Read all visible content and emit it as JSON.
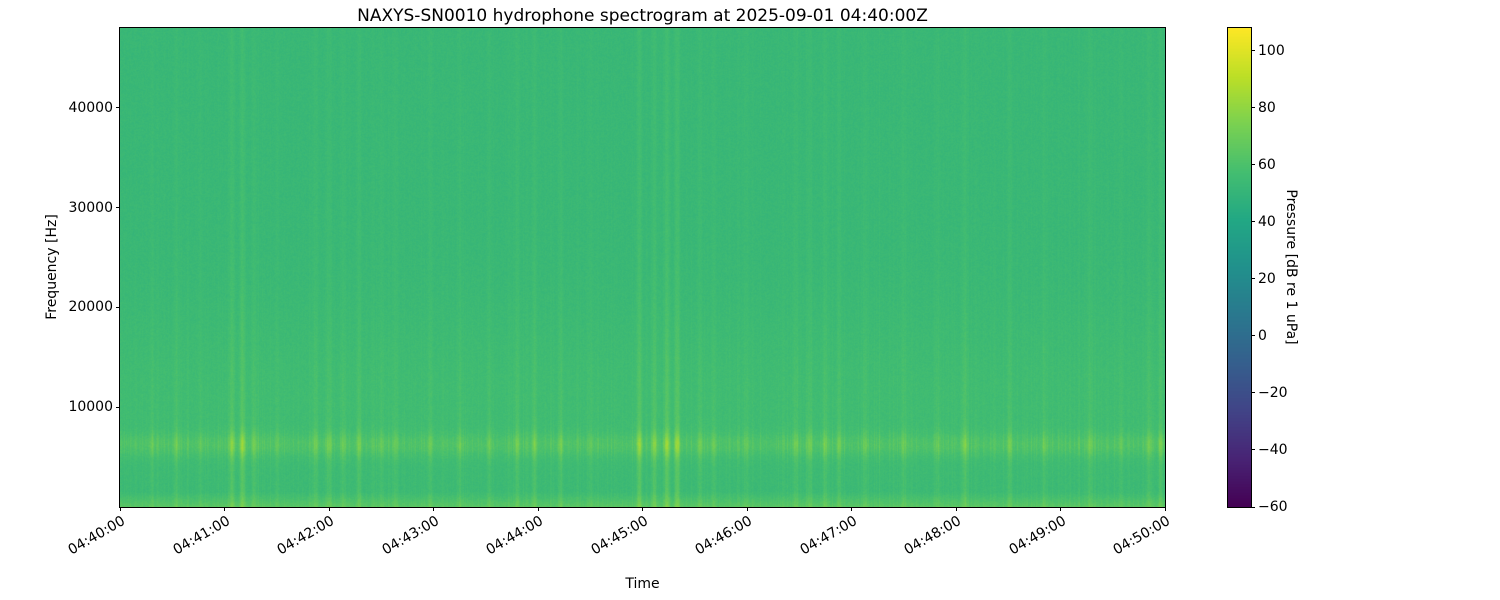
{
  "chart_data": {
    "type": "heatmap",
    "title": "NAXYS-SN0010 hydrophone spectrogram at 2025-09-01 04:40:00Z",
    "xlabel": "Time",
    "ylabel": "Frequency [Hz]",
    "x_tick_labels": [
      "04:40:00",
      "04:41:00",
      "04:42:00",
      "04:43:00",
      "04:44:00",
      "04:45:00",
      "04:46:00",
      "04:47:00",
      "04:48:00",
      "04:49:00",
      "04:50:00"
    ],
    "x_range_seconds": [
      0,
      600
    ],
    "y_tick_values": [
      10000,
      20000,
      30000,
      40000
    ],
    "y_range_hz": [
      0,
      48000
    ],
    "colormap": "viridis",
    "grid": false,
    "legend": "none",
    "colorbar": {
      "label": "Pressure [dB re 1 uPa]",
      "tick_values": [
        100,
        80,
        60,
        40,
        20,
        0,
        -20,
        -40,
        -60
      ],
      "range_db": [
        -60,
        108
      ],
      "position": "right"
    },
    "background": {
      "base_level_db": 52,
      "pixel_noise_db": 4.2,
      "low_band_hz": 1500,
      "low_band_boost_db": 10,
      "mid_hump_center_hz": 11000,
      "mid_hump_width_hz": 9000,
      "mid_hump_boost_db": 3,
      "tonal_band_hz": 6200,
      "tonal_band_width_hz": 1100,
      "tonal_band_boost_db": 4.5
    },
    "transients": [
      {
        "t": 18,
        "i": 0.3
      },
      {
        "t": 32,
        "i": 0.4
      },
      {
        "t": 46,
        "i": 0.3
      },
      {
        "t": 64,
        "i": 0.85
      },
      {
        "t": 70,
        "i": 0.95
      },
      {
        "t": 77,
        "i": 0.5
      },
      {
        "t": 90,
        "i": 0.3
      },
      {
        "t": 112,
        "i": 0.45
      },
      {
        "t": 120,
        "i": 0.5
      },
      {
        "t": 128,
        "i": 0.4
      },
      {
        "t": 137,
        "i": 0.55
      },
      {
        "t": 150,
        "i": 0.35
      },
      {
        "t": 158,
        "i": 0.4
      },
      {
        "t": 178,
        "i": 0.45
      },
      {
        "t": 195,
        "i": 0.3
      },
      {
        "t": 212,
        "i": 0.4
      },
      {
        "t": 228,
        "i": 0.55
      },
      {
        "t": 238,
        "i": 0.6
      },
      {
        "t": 253,
        "i": 0.5
      },
      {
        "t": 270,
        "i": 0.3
      },
      {
        "t": 298,
        "i": 0.9
      },
      {
        "t": 307,
        "i": 0.6
      },
      {
        "t": 314,
        "i": 1.0
      },
      {
        "t": 320,
        "i": 0.95
      },
      {
        "t": 333,
        "i": 0.5
      },
      {
        "t": 341,
        "i": 0.45
      },
      {
        "t": 360,
        "i": 0.3
      },
      {
        "t": 388,
        "i": 0.45
      },
      {
        "t": 396,
        "i": 0.5
      },
      {
        "t": 405,
        "i": 0.45
      },
      {
        "t": 413,
        "i": 0.4
      },
      {
        "t": 428,
        "i": 0.4
      },
      {
        "t": 450,
        "i": 0.35
      },
      {
        "t": 470,
        "i": 0.3
      },
      {
        "t": 485,
        "i": 0.6
      },
      {
        "t": 511,
        "i": 0.55
      },
      {
        "t": 531,
        "i": 0.4
      },
      {
        "t": 557,
        "i": 0.5
      },
      {
        "t": 575,
        "i": 0.35
      },
      {
        "t": 591,
        "i": 0.55
      },
      {
        "t": 598,
        "i": 0.45
      }
    ]
  }
}
